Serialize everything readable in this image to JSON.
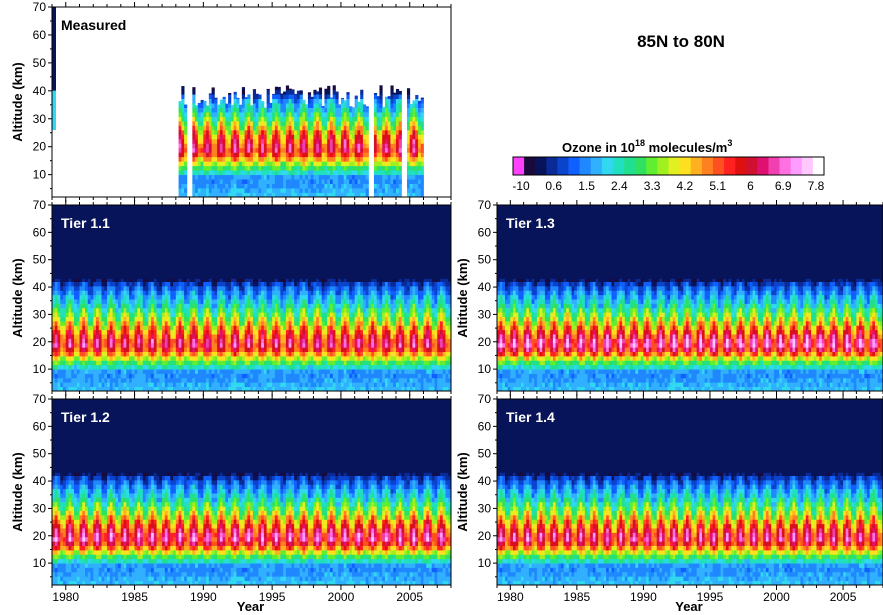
{
  "figure_title": "85N to 80N",
  "colors": {
    "background_fill": "#08145a",
    "scale": [
      "#ff40ff",
      "#1a0a3c",
      "#08145a",
      "#0a2a96",
      "#0a44cc",
      "#1060ff",
      "#2088ff",
      "#30b0ff",
      "#30d8f0",
      "#20e0c0",
      "#20e090",
      "#30e060",
      "#60ee30",
      "#a0f020",
      "#e0f020",
      "#ffe020",
      "#ffb020",
      "#ff8020",
      "#ff5020",
      "#ff2020",
      "#e01010",
      "#d01030",
      "#e01070",
      "#f040b0",
      "#ff70e0",
      "#ff9cff",
      "#ffc8ff",
      "#ffffff"
    ]
  },
  "colorbar": {
    "title_main": "Ozone in 10",
    "title_sup": "18",
    "title_rest": " molecules/m",
    "title_sup2": "3",
    "tick_labels": [
      "-10",
      "0.6",
      "1.5",
      "2.4",
      "3.3",
      "4.2",
      "5.1",
      "6",
      "6.9",
      "7.8"
    ]
  },
  "chart_data": [
    {
      "type": "heatmap",
      "panel": "Measured",
      "title": "Measured",
      "title_color": "#000000",
      "ylabel": "Altitude (km)",
      "xlabel": "",
      "xlim": [
        1979,
        2008
      ],
      "ylim": [
        2,
        70
      ],
      "y_ticks": [
        10,
        20,
        30,
        40,
        50,
        60,
        70
      ],
      "x_ticks": [],
      "data_start_year": 1988.2,
      "data_end_year": 2006,
      "gaps_years": [
        1988.9,
        2002.1,
        2004.5
      ],
      "profile": {
        "altitude_km": [
          2,
          8,
          12,
          16,
          18,
          20,
          24,
          28,
          32,
          36,
          40
        ],
        "level_min": [
          2.0,
          1.5,
          3.0,
          4.5,
          5.0,
          4.6,
          3.5,
          2.5,
          1.6,
          1.0,
          0.0
        ],
        "level_max": [
          2.0,
          1.6,
          3.6,
          6.0,
          7.0,
          7.0,
          6.2,
          4.5,
          3.2,
          2.2,
          0.0
        ]
      }
    },
    {
      "type": "heatmap",
      "panel": "Tier 1.1",
      "title": "Tier 1.1",
      "title_color": "#ffffff",
      "ylabel": "Altitude (km)",
      "xlabel": "",
      "xlim": [
        1979,
        2008
      ],
      "ylim": [
        2,
        70
      ],
      "y_ticks": [
        10,
        20,
        30,
        40,
        50,
        60,
        70
      ],
      "x_ticks": [],
      "data_start_year": 1979,
      "data_end_year": 2008,
      "profile": {
        "altitude_km": [
          2,
          8,
          12,
          16,
          18,
          20,
          24,
          28,
          32,
          36,
          40,
          43
        ],
        "level_min": [
          2.0,
          1.5,
          3.0,
          4.6,
          5.0,
          4.8,
          3.6,
          2.6,
          1.8,
          1.2,
          0.6,
          0.0
        ],
        "level_max": [
          2.0,
          1.6,
          3.8,
          6.2,
          7.2,
          7.0,
          6.0,
          4.6,
          3.4,
          2.4,
          1.4,
          0.0
        ]
      }
    },
    {
      "type": "heatmap",
      "panel": "Tier 1.2",
      "title": "Tier 1.2",
      "title_color": "#ffffff",
      "ylabel": "Altitude (km)",
      "xlabel": "Year",
      "xlim": [
        1979,
        2008
      ],
      "ylim": [
        2,
        70
      ],
      "y_ticks": [
        10,
        20,
        30,
        40,
        50,
        60,
        70
      ],
      "x_ticks": [
        1980,
        1985,
        1990,
        1995,
        2000,
        2005
      ],
      "data_start_year": 1979,
      "data_end_year": 2008,
      "profile": {
        "altitude_km": [
          2,
          8,
          12,
          16,
          18,
          20,
          24,
          28,
          32,
          36,
          40,
          43
        ],
        "level_min": [
          2.0,
          1.5,
          3.0,
          4.8,
          5.2,
          5.0,
          3.8,
          2.7,
          1.8,
          1.2,
          0.6,
          0.0
        ],
        "level_max": [
          2.0,
          1.6,
          3.8,
          6.6,
          7.6,
          7.4,
          6.2,
          4.7,
          3.4,
          2.4,
          1.4,
          0.0
        ]
      }
    },
    {
      "type": "heatmap",
      "panel": "Tier 1.3",
      "title": "Tier 1.3",
      "title_color": "#ffffff",
      "ylabel": "Altitude (km)",
      "xlabel": "",
      "xlim": [
        1979,
        2008
      ],
      "ylim": [
        2,
        70
      ],
      "y_ticks": [
        10,
        20,
        30,
        40,
        50,
        60,
        70
      ],
      "x_ticks": [],
      "data_start_year": 1979,
      "data_end_year": 2008,
      "profile": {
        "altitude_km": [
          2,
          8,
          12,
          16,
          18,
          20,
          24,
          28,
          32,
          36,
          40,
          43
        ],
        "level_min": [
          2.0,
          1.5,
          3.0,
          4.8,
          5.2,
          5.0,
          3.8,
          2.7,
          1.8,
          1.2,
          0.6,
          0.0
        ],
        "level_max": [
          2.0,
          1.6,
          3.8,
          6.8,
          7.8,
          7.6,
          6.2,
          4.7,
          3.4,
          2.4,
          1.4,
          0.0
        ]
      }
    },
    {
      "type": "heatmap",
      "panel": "Tier 1.4",
      "title": "Tier 1.4",
      "title_color": "#ffffff",
      "ylabel": "Altitude (km)",
      "xlabel": "Year",
      "xlim": [
        1979,
        2008
      ],
      "ylim": [
        2,
        70
      ],
      "y_ticks": [
        10,
        20,
        30,
        40,
        50,
        60,
        70
      ],
      "x_ticks": [
        1980,
        1985,
        1990,
        1995,
        2000,
        2005
      ],
      "data_start_year": 1979,
      "data_end_year": 2008,
      "profile": {
        "altitude_km": [
          2,
          8,
          12,
          16,
          18,
          20,
          24,
          28,
          32,
          36,
          40,
          43
        ],
        "level_min": [
          2.0,
          1.5,
          3.0,
          4.6,
          5.0,
          4.8,
          3.6,
          2.6,
          1.8,
          1.2,
          0.6,
          0.0
        ],
        "level_max": [
          2.0,
          1.6,
          3.8,
          6.4,
          7.4,
          7.2,
          6.0,
          4.6,
          3.4,
          2.4,
          1.4,
          0.0
        ]
      }
    }
  ]
}
